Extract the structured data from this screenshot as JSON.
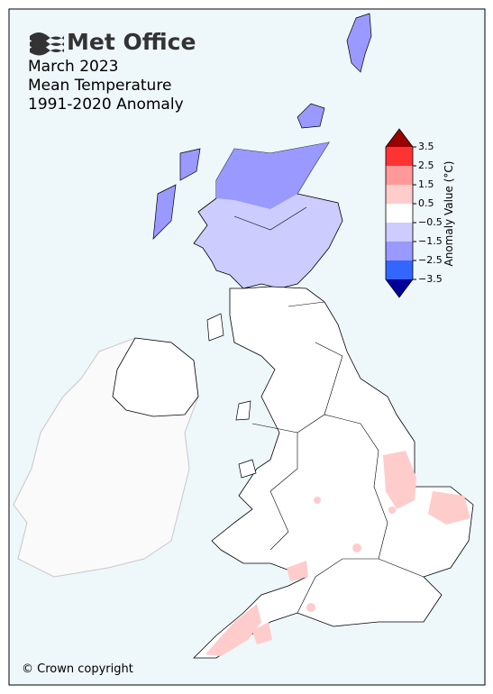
{
  "header": {
    "logo": "Met Office",
    "lines": [
      "March 2023",
      "Mean Temperature",
      "1991-2020 Anomaly"
    ]
  },
  "colorbar": {
    "title": "Anomaly Value (°C)",
    "ticks": [
      3.5,
      2.5,
      1.5,
      0.5,
      {
        "value": -0.5,
        "label": "−0.5"
      },
      {
        "value": -1.5,
        "label": "−1.5"
      },
      {
        "value": -2.5,
        "label": "−2.5"
      },
      {
        "value": -3.5,
        "label": "−3.5"
      }
    ],
    "colors": [
      "#ff3333",
      "#ff9999",
      "#ffcccc",
      "#ffffff",
      "#ccccff",
      "#9999ff",
      "#3366ff"
    ],
    "over_color": "#990000",
    "under_color": "#000099"
  },
  "footer": "© Crown copyright"
}
